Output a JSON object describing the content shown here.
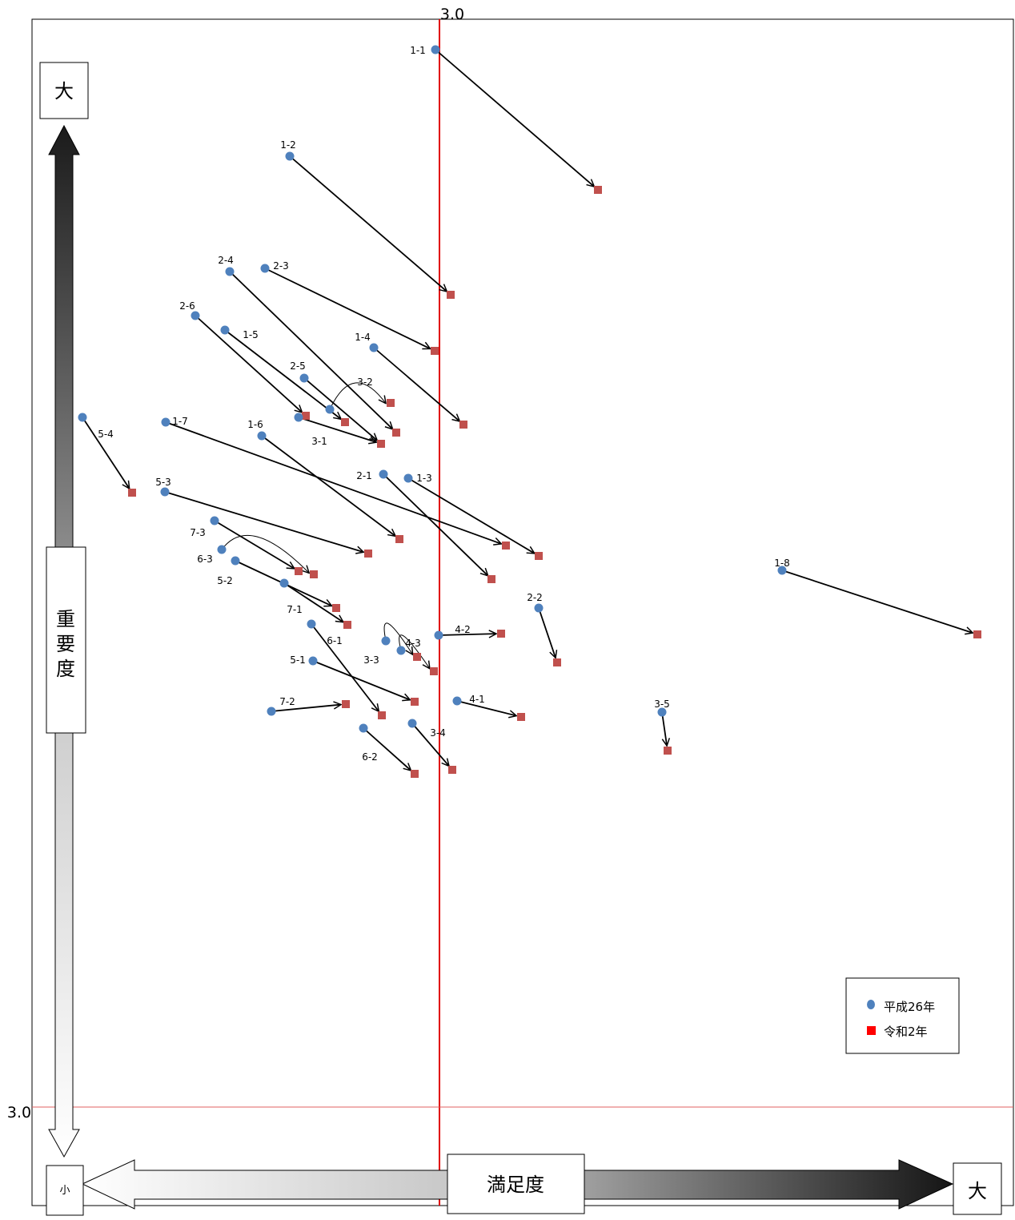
{
  "colors": {
    "h26_point": "#4f81bd",
    "r2_point": "#c0504d",
    "legend_square": "#ff0000",
    "reference_line": "#e00000",
    "arrow": "#000000"
  },
  "axis_labels": {
    "x_reference_value": "3.0",
    "y_reference_value": "3.0",
    "satisfaction": "満足度",
    "satisfaction_high": "大",
    "satisfaction_low": "小",
    "importance_high": "大",
    "importance": [
      "重",
      "要",
      "度"
    ]
  },
  "legend": {
    "h26": "平成26年",
    "r2": "令和2年"
  },
  "chart_data": {
    "type": "scatter",
    "title": "",
    "xlabel": "満足度",
    "ylabel": "重要度",
    "x_reference": 3.0,
    "y_reference": 3.0,
    "series": [
      {
        "name": "平成26年",
        "marker": "circle"
      },
      {
        "name": "令和2年",
        "marker": "square"
      }
    ],
    "items": [
      {
        "id": "1-1",
        "h26": [
          544,
          62
        ],
        "r2": [
          747,
          237
        ]
      },
      {
        "id": "1-2",
        "h26": [
          362,
          195
        ],
        "r2": [
          563,
          368
        ]
      },
      {
        "id": "1-3",
        "h26": [
          510,
          597
        ],
        "r2": [
          673,
          694
        ]
      },
      {
        "id": "1-4",
        "h26": [
          467,
          434
        ],
        "r2": [
          579,
          530
        ]
      },
      {
        "id": "1-5",
        "h26": [
          281,
          412
        ],
        "r2": [
          431,
          527
        ]
      },
      {
        "id": "1-6",
        "h26": [
          327,
          544
        ],
        "r2": [
          499,
          673
        ]
      },
      {
        "id": "1-7",
        "h26": [
          207,
          527
        ],
        "r2": [
          632,
          681
        ]
      },
      {
        "id": "1-8",
        "h26": [
          977,
          712
        ],
        "r2": [
          1221,
          792
        ]
      },
      {
        "id": "2-1",
        "h26": [
          479,
          592
        ],
        "r2": [
          614,
          723
        ]
      },
      {
        "id": "2-2",
        "h26": [
          673,
          759
        ],
        "r2": [
          696,
          827
        ]
      },
      {
        "id": "2-3",
        "h26": [
          331,
          335
        ],
        "r2": [
          543,
          438
        ]
      },
      {
        "id": "2-4",
        "h26": [
          287,
          339
        ],
        "r2": [
          495,
          540
        ]
      },
      {
        "id": "2-5",
        "h26": [
          380,
          472
        ],
        "r2": [
          476,
          554
        ]
      },
      {
        "id": "2-6",
        "h26": [
          244,
          394
        ],
        "r2": [
          382,
          519
        ]
      },
      {
        "id": "3-1",
        "h26": [
          373,
          521
        ],
        "r2": [
          476,
          554
        ]
      },
      {
        "id": "3-2",
        "h26": [
          412,
          511
        ],
        "r2": [
          488,
          503
        ],
        "curved": true
      },
      {
        "id": "3-3",
        "h26": [
          482,
          800
        ],
        "r2": [
          521,
          820
        ],
        "curved": true
      },
      {
        "id": "3-4",
        "h26": [
          515,
          903
        ],
        "r2": [
          565,
          961
        ]
      },
      {
        "id": "3-5",
        "h26": [
          827,
          889
        ],
        "r2": [
          834,
          937
        ]
      },
      {
        "id": "4-1",
        "h26": [
          571,
          875
        ],
        "r2": [
          651,
          895
        ]
      },
      {
        "id": "4-2",
        "h26": [
          548,
          793
        ],
        "r2": [
          626,
          791
        ]
      },
      {
        "id": "4-3",
        "h26": [
          501,
          812
        ],
        "r2": [
          542,
          838
        ],
        "curved": true
      },
      {
        "id": "5-1",
        "h26": [
          391,
          825
        ],
        "r2": [
          518,
          876
        ]
      },
      {
        "id": "5-2",
        "h26": [
          294,
          700
        ],
        "r2": [
          420,
          759
        ]
      },
      {
        "id": "5-3",
        "h26": [
          206,
          614
        ],
        "r2": [
          460,
          691
        ]
      },
      {
        "id": "5-4",
        "h26": [
          103,
          521
        ],
        "r2": [
          165,
          615
        ]
      },
      {
        "id": "6-1",
        "h26": [
          389,
          779
        ],
        "r2": [
          477,
          893
        ]
      },
      {
        "id": "6-2",
        "h26": [
          454,
          909
        ],
        "r2": [
          518,
          966
        ]
      },
      {
        "id": "6-3",
        "h26": [
          277,
          686
        ],
        "r2": [
          392,
          717
        ],
        "curved": true
      },
      {
        "id": "7-1",
        "h26": [
          355,
          728
        ],
        "r2": [
          434,
          780
        ]
      },
      {
        "id": "7-2",
        "h26": [
          339,
          888
        ],
        "r2": [
          432,
          879
        ]
      },
      {
        "id": "7-3",
        "h26": [
          268,
          650
        ],
        "r2": [
          373,
          713
        ]
      }
    ]
  }
}
